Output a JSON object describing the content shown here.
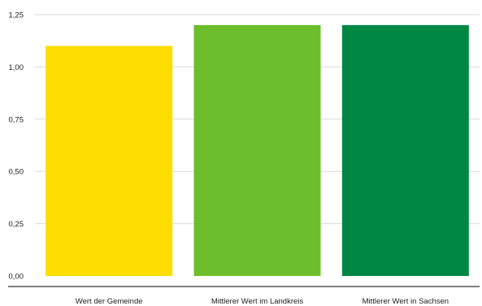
{
  "chart_data": {
    "type": "bar",
    "title": "",
    "xlabel": "",
    "ylabel": "",
    "categories": [
      "Wert der Gemeinde",
      "Mittlerer Wert im Landkreis",
      "Mittlerer Wert in Sachsen"
    ],
    "values": [
      1.1,
      1.2,
      1.2
    ],
    "colors": [
      "#ffdd00",
      "#6dbe2c",
      "#008744"
    ],
    "ylim": [
      0,
      1.25
    ],
    "yticks": [
      0,
      0.25,
      0.5,
      0.75,
      1.0,
      1.25
    ],
    "ytick_labels": [
      "0,00",
      "0,25",
      "0,50",
      "0,75",
      "1,00",
      "1,25"
    ],
    "grid": true,
    "legend": "none"
  }
}
